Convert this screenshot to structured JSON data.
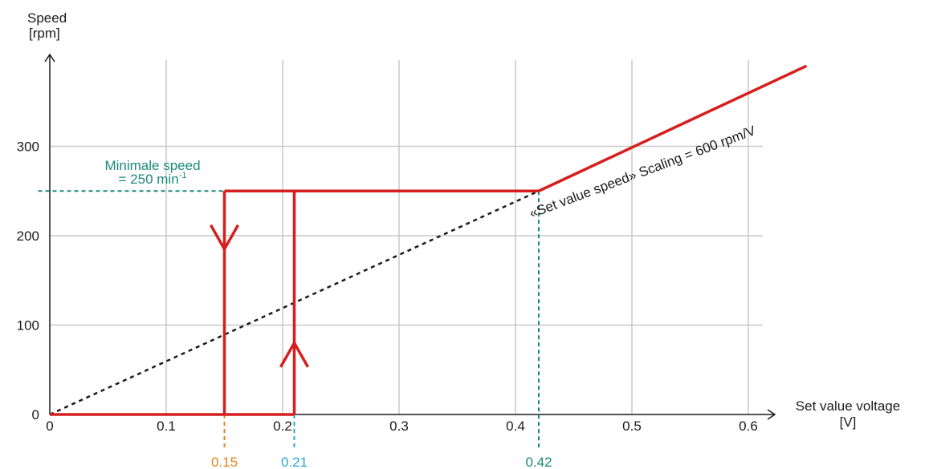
{
  "chart_data": {
    "type": "line",
    "xlabel_line1": "Set value voltage",
    "xlabel_line2": "[V]",
    "ylabel_line1": "Speed",
    "ylabel_line2": "[rpm]",
    "xlim": [
      0,
      0.6
    ],
    "ylim": [
      0,
      300
    ],
    "x_ticks": [
      0,
      0.1,
      0.2,
      0.3,
      0.4,
      0.5,
      0.6
    ],
    "x_tick_labels": [
      "0",
      "0.1",
      "0.2",
      "0.3",
      "0.4",
      "0.5",
      "0.6"
    ],
    "y_ticks": [
      0,
      100,
      200,
      300
    ],
    "y_tick_labels": [
      "0",
      "100",
      "200",
      "300"
    ],
    "grid": true,
    "series": [
      {
        "style": "solid",
        "color": "#d61e1e",
        "segments": [
          [
            [
              0,
              0
            ],
            [
              0.21,
              0
            ]
          ],
          [
            [
              0.15,
              0
            ],
            [
              0.15,
              250
            ]
          ],
          [
            [
              0.21,
              0
            ],
            [
              0.21,
              250
            ]
          ],
          [
            [
              0.15,
              250
            ],
            [
              0.42,
              250
            ]
          ],
          [
            [
              0.42,
              250
            ],
            [
              0.65,
              390
            ]
          ]
        ]
      },
      {
        "style": "dashed",
        "color": "#1a1a1a",
        "points": [
          [
            0,
            0
          ],
          [
            0.42,
            250
          ]
        ]
      }
    ],
    "direction_arrows": [
      {
        "x": 0.15,
        "y": 185,
        "direction": "down"
      },
      {
        "x": 0.21,
        "y": 80,
        "direction": "up"
      }
    ],
    "reference_lines": [
      {
        "type": "horizontal",
        "y": 250,
        "from_x": -0.01,
        "to_x": 0.15,
        "color": "#1a8a78"
      },
      {
        "type": "vertical",
        "x": 0.15,
        "color": "#e8821e",
        "label": "0.15"
      },
      {
        "type": "vertical",
        "x": 0.21,
        "color": "#2aa6d4",
        "label": "0.21"
      },
      {
        "type": "vertical",
        "x": 0.42,
        "from_y": 250,
        "color": "#1a8a78",
        "label": "0.42"
      }
    ],
    "annotations": {
      "min_speed_line1": "Minimale speed",
      "min_speed_line2": "= 250 min",
      "min_speed_sup": "-1",
      "min_speed_color": "#1a8a78",
      "scaling_label": "«Set value speed» Scaling = 600 rpm/V",
      "scaling_color": "#1a1a1a"
    }
  }
}
